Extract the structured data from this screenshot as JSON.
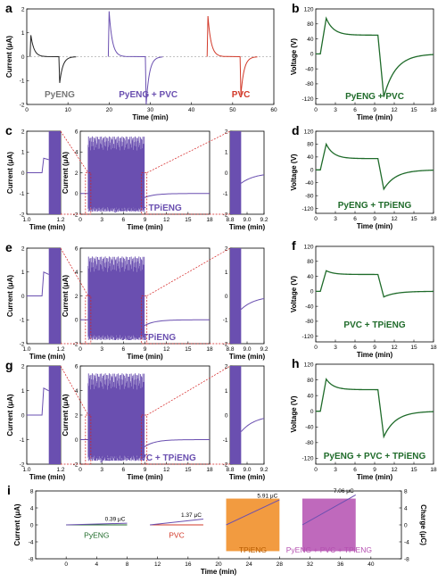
{
  "colors": {
    "black": "#222222",
    "purple": "#6a4fb0",
    "red": "#d23a2a",
    "green": "#1f6b2a",
    "orange": "#f08a1e",
    "magenta": "#b44fb0",
    "axis_red": "#d42020"
  },
  "chart_data": [
    {
      "id": "a",
      "panel_label": "a",
      "type": "line",
      "ylabel": "Current (μA)",
      "xlabel": "Time (min)",
      "xlim": [
        0,
        60
      ],
      "ylim": [
        -2,
        2
      ],
      "xticks": [
        "0",
        "10",
        "20",
        "30",
        "40",
        "50",
        "60"
      ],
      "yticks": [
        "2",
        "1",
        "0",
        "-1",
        "-2"
      ],
      "labels": [
        {
          "text": "PyENG",
          "color": "gray"
        },
        {
          "text": "PyENG + PVC",
          "color": "purple"
        },
        {
          "text": "PVC",
          "color": "red"
        }
      ],
      "series": [
        {
          "color": "black",
          "pulses": [
            {
              "x": 1,
              "peak": 0.9
            },
            {
              "x": 8,
              "peak": -1.1
            }
          ]
        },
        {
          "color": "purple",
          "pulses": [
            {
              "x": 20,
              "peak": 1.9
            },
            {
              "x": 29,
              "peak": -2.0
            }
          ]
        },
        {
          "color": "red",
          "pulses": [
            {
              "x": 44,
              "peak": 1.7
            },
            {
              "x": 52,
              "peak": -1.6
            }
          ]
        }
      ]
    },
    {
      "id": "b",
      "panel_label": "b",
      "type": "line",
      "label": "PyENG + PVC",
      "ylabel": "Voltage (V)",
      "xlabel": "Time (min)",
      "xlim": [
        0,
        18
      ],
      "ylim": [
        -135,
        120
      ],
      "xticks": [
        "0",
        "3",
        "6",
        "9",
        "12",
        "15",
        "18"
      ],
      "yticks": [
        "120",
        "80",
        "40",
        "0",
        "-40",
        "-80",
        "-120"
      ],
      "profile": {
        "rise_peak": 95,
        "plateau": 50,
        "drop_min": -115
      }
    },
    {
      "id": "c",
      "panel_label": "c",
      "type": "line",
      "label": "PyENG + TPiENG",
      "ylabel": "Current (μA)",
      "xlabel": "Time (min)",
      "xlim": [
        0,
        18
      ],
      "ylim": [
        -2,
        6
      ],
      "xticks": [
        "0",
        "3",
        "6",
        "9",
        "12",
        "15",
        "18"
      ],
      "yticks": [
        "6",
        "4",
        "2",
        "0",
        "-2"
      ],
      "burst_amp": 5.5,
      "start_peak": 0.7,
      "end_dip": -0.4,
      "zoom_left": {
        "xlim": [
          1.0,
          1.2
        ],
        "xticks": [
          "1.0",
          "1.2"
        ],
        "ylim": [
          -2,
          2
        ],
        "yticks": [
          "2",
          "1",
          "0",
          "-1",
          "-2"
        ],
        "step": 0.7
      },
      "zoom_right": {
        "xlim": [
          8.8,
          9.2
        ],
        "xticks": [
          "8.8",
          "9.0",
          "9.2"
        ],
        "ylim": [
          -2,
          2
        ],
        "yticks": [
          "2",
          "1",
          "0",
          "-1",
          "-2"
        ],
        "dip": -0.45
      }
    },
    {
      "id": "d",
      "panel_label": "d",
      "type": "line",
      "label": "PyENG + TPiENG",
      "ylabel": "Voltage (V)",
      "xlabel": "Time (min)",
      "xlim": [
        0,
        18
      ],
      "ylim": [
        -135,
        120
      ],
      "xticks": [
        "0",
        "3",
        "6",
        "9",
        "12",
        "15",
        "18"
      ],
      "yticks": [
        "120",
        "80",
        "40",
        "0",
        "-40",
        "-80",
        "-120"
      ],
      "profile": {
        "rise_peak": 80,
        "plateau": 35,
        "drop_min": -60
      }
    },
    {
      "id": "e",
      "panel_label": "e",
      "type": "line",
      "label": "PVC + TPiENG",
      "ylabel": "Current (μA)",
      "xlabel": "Time (min)",
      "xlim": [
        0,
        18
      ],
      "ylim": [
        -2,
        6
      ],
      "xticks": [
        "0",
        "3",
        "6",
        "9",
        "12",
        "15",
        "18"
      ],
      "yticks": [
        "6",
        "4",
        "2",
        "0",
        "-2"
      ],
      "burst_amp": 5.3,
      "start_peak": 1.0,
      "end_dip": -0.5,
      "zoom_left": {
        "xlim": [
          1.0,
          1.2
        ],
        "xticks": [
          "1.0",
          "1.2"
        ],
        "ylim": [
          -2,
          2
        ],
        "yticks": [
          "2",
          "1",
          "0",
          "-1",
          "-2"
        ],
        "step": 1.0
      },
      "zoom_right": {
        "xlim": [
          8.8,
          9.2
        ],
        "xticks": [
          "8.8",
          "9.0",
          "9.2"
        ],
        "ylim": [
          -2,
          2
        ],
        "yticks": [
          "2",
          "1",
          "0",
          "-1",
          "-2"
        ],
        "dip": -0.5
      }
    },
    {
      "id": "f",
      "panel_label": "f",
      "type": "line",
      "label": "PVC + TPiENG",
      "ylabel": "Voltage (V)",
      "xlabel": "Time (min)",
      "xlim": [
        0,
        18
      ],
      "ylim": [
        -135,
        120
      ],
      "xticks": [
        "0",
        "3",
        "6",
        "9",
        "12",
        "15",
        "18"
      ],
      "yticks": [
        "120",
        "80",
        "40",
        "0",
        "-40",
        "-80",
        "-120"
      ],
      "profile": {
        "rise_peak": 55,
        "plateau": 45,
        "drop_min": -15
      }
    },
    {
      "id": "g",
      "panel_label": "g",
      "type": "line",
      "label": "PyENG + PVC + TPiENG",
      "ylabel": "Current (μA)",
      "xlabel": "Time (min)",
      "xlim": [
        0,
        18
      ],
      "ylim": [
        -2,
        6
      ],
      "xticks": [
        "0",
        "3",
        "6",
        "9",
        "12",
        "15",
        "18"
      ],
      "yticks": [
        "6",
        "4",
        "2",
        "0",
        "-2"
      ],
      "burst_amp": 5.4,
      "start_peak": 1.1,
      "end_dip": -0.6,
      "zoom_left": {
        "xlim": [
          1.0,
          1.2
        ],
        "xticks": [
          "1.0",
          "1.2"
        ],
        "ylim": [
          -2,
          2
        ],
        "yticks": [
          "2",
          "1",
          "0",
          "-1",
          "-2"
        ],
        "step": 1.1
      },
      "zoom_right": {
        "xlim": [
          8.8,
          9.2
        ],
        "xticks": [
          "8.8",
          "9.0",
          "9.2"
        ],
        "ylim": [
          -2,
          2
        ],
        "yticks": [
          "2",
          "1",
          "0",
          "-1",
          "-2"
        ],
        "dip": -0.6
      }
    },
    {
      "id": "h",
      "panel_label": "h",
      "type": "line",
      "label": "PyENG + PVC + TPiENG",
      "ylabel": "Voltage (V)",
      "xlabel": "Time (min)",
      "xlim": [
        0,
        18
      ],
      "ylim": [
        -135,
        120
      ],
      "xticks": [
        "0",
        "3",
        "6",
        "9",
        "12",
        "15",
        "18"
      ],
      "yticks": [
        "120",
        "80",
        "40",
        "0",
        "-40",
        "-80",
        "-120"
      ],
      "profile": {
        "rise_peak": 82,
        "plateau": 55,
        "drop_min": -65
      }
    },
    {
      "id": "i",
      "panel_label": "i",
      "type": "line",
      "ylabel": "Current (μA)",
      "y2label": "Charge (μC)",
      "xlabel": "Time (min)",
      "xlim": [
        -4,
        44
      ],
      "ylim": [
        -8,
        8
      ],
      "y2lim": [
        -8,
        8
      ],
      "xticks": [
        "0",
        "4",
        "8",
        "12",
        "16",
        "20",
        "24",
        "28",
        "32",
        "36",
        "40"
      ],
      "yticks": [
        "8",
        "4",
        "0",
        "-4",
        "-8"
      ],
      "y2ticks": [
        "8",
        "4",
        "0",
        "-4",
        "-8"
      ],
      "segments": [
        {
          "label": "PyENG",
          "color": "green",
          "x": [
            0,
            8
          ],
          "charge": 0.39,
          "charge_label": "0.39 μC",
          "filled": false
        },
        {
          "label": "PVC",
          "color": "red",
          "x": [
            11,
            18
          ],
          "charge": 1.37,
          "charge_label": "1.37 μC",
          "filled": false
        },
        {
          "label": "TPiENG",
          "color": "orange",
          "x": [
            21,
            28
          ],
          "charge": 5.91,
          "charge_label": "5.91 μC",
          "filled": true
        },
        {
          "label": "PyENG + PVC + TPiENG",
          "color": "magenta",
          "x": [
            31,
            38
          ],
          "charge": 7.06,
          "charge_label": "7.06 μC",
          "filled": true
        }
      ]
    }
  ]
}
